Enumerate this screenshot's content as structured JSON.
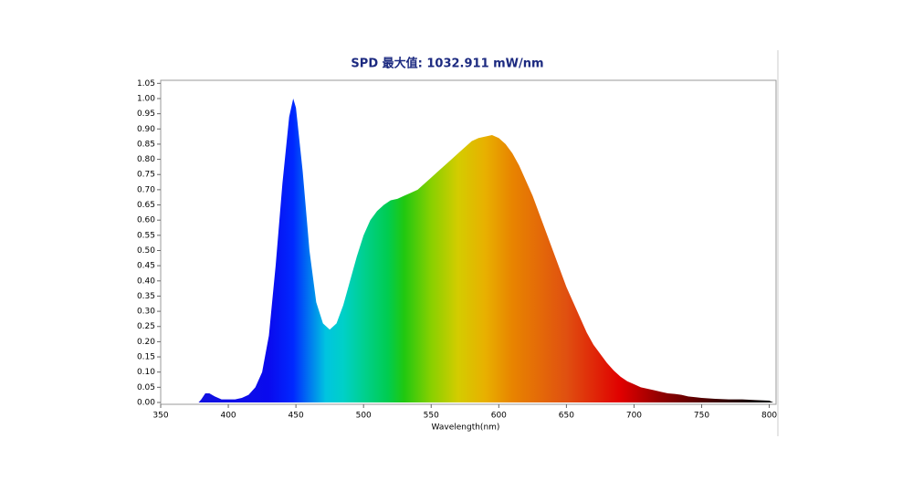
{
  "chart_data": {
    "type": "area",
    "title": "SPD 最大值: 1032.911 mW/nm",
    "x_label": "Wavelength(nm)",
    "xlim": [
      350,
      805
    ],
    "ylim": [
      0,
      1.06
    ],
    "xticks": [
      350,
      400,
      450,
      500,
      550,
      600,
      650,
      700,
      750,
      800
    ],
    "yticks": [
      {
        "value": 0,
        "label": "0.00"
      },
      0.05,
      {
        "value": 0.1,
        "label": "0.10"
      },
      0.15,
      {
        "value": 0.2,
        "label": "0.20"
      },
      0.25,
      {
        "value": 0.3,
        "label": "0.30"
      },
      0.35,
      {
        "value": 0.4,
        "label": "0.40"
      },
      0.45,
      {
        "value": 0.5,
        "label": "0.50"
      },
      0.55,
      {
        "value": 0.6,
        "label": "0.60"
      },
      0.65,
      {
        "value": 0.7,
        "label": "0.70"
      },
      0.75,
      {
        "value": 0.8,
        "label": "0.80"
      },
      0.85,
      {
        "value": 0.9,
        "label": "0.90"
      },
      0.95,
      {
        "value": 1,
        "label": "1.00"
      },
      1.05
    ],
    "x": [
      350,
      360,
      370,
      378,
      380,
      383,
      386,
      390,
      395,
      400,
      405,
      410,
      415,
      420,
      425,
      430,
      435,
      440,
      445,
      448,
      450,
      455,
      460,
      465,
      470,
      475,
      480,
      485,
      490,
      495,
      500,
      505,
      510,
      515,
      520,
      525,
      530,
      535,
      540,
      545,
      550,
      555,
      560,
      565,
      570,
      575,
      580,
      585,
      590,
      595,
      600,
      605,
      610,
      615,
      620,
      625,
      630,
      635,
      640,
      645,
      650,
      655,
      660,
      665,
      670,
      675,
      680,
      685,
      690,
      695,
      700,
      705,
      710,
      715,
      720,
      725,
      730,
      735,
      740,
      750,
      760,
      770,
      780,
      790,
      800,
      803
    ],
    "values": [
      0.0,
      0.0,
      0.0,
      0.0,
      0.01,
      0.03,
      0.03,
      0.02,
      0.01,
      0.01,
      0.01,
      0.015,
      0.025,
      0.05,
      0.1,
      0.22,
      0.45,
      0.72,
      0.94,
      1.0,
      0.97,
      0.76,
      0.5,
      0.33,
      0.26,
      0.24,
      0.26,
      0.32,
      0.4,
      0.48,
      0.55,
      0.6,
      0.63,
      0.65,
      0.665,
      0.67,
      0.68,
      0.69,
      0.7,
      0.72,
      0.74,
      0.76,
      0.78,
      0.8,
      0.82,
      0.84,
      0.86,
      0.87,
      0.875,
      0.88,
      0.87,
      0.85,
      0.82,
      0.78,
      0.73,
      0.68,
      0.62,
      0.56,
      0.5,
      0.44,
      0.38,
      0.33,
      0.28,
      0.23,
      0.19,
      0.16,
      0.13,
      0.105,
      0.085,
      0.07,
      0.06,
      0.05,
      0.045,
      0.04,
      0.035,
      0.03,
      0.028,
      0.025,
      0.02,
      0.015,
      0.012,
      0.01,
      0.01,
      0.008,
      0.006,
      0.0
    ],
    "gradient": [
      {
        "wavelength": 350,
        "color": "#1414d8"
      },
      {
        "wavelength": 430,
        "color": "#0a0aee"
      },
      {
        "wavelength": 448,
        "color": "#0028ff"
      },
      {
        "wavelength": 460,
        "color": "#0078f0"
      },
      {
        "wavelength": 472,
        "color": "#00c4e0"
      },
      {
        "wavelength": 485,
        "color": "#00d0c8"
      },
      {
        "wavelength": 500,
        "color": "#00d090"
      },
      {
        "wavelength": 518,
        "color": "#00cc50"
      },
      {
        "wavelength": 530,
        "color": "#20c810"
      },
      {
        "wavelength": 550,
        "color": "#88d000"
      },
      {
        "wavelength": 570,
        "color": "#d4cc00"
      },
      {
        "wavelength": 590,
        "color": "#e8b000"
      },
      {
        "wavelength": 610,
        "color": "#e88400"
      },
      {
        "wavelength": 650,
        "color": "#e05010"
      },
      {
        "wavelength": 690,
        "color": "#e00000"
      },
      {
        "wavelength": 720,
        "color": "#900000"
      },
      {
        "wavelength": 760,
        "color": "#400000"
      },
      {
        "wavelength": 800,
        "color": "#000000"
      }
    ]
  }
}
